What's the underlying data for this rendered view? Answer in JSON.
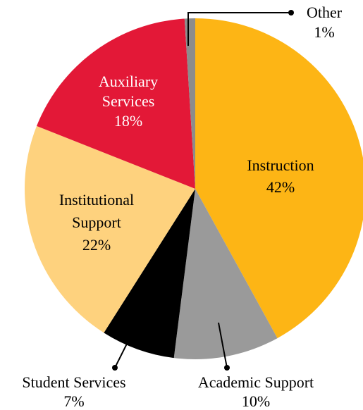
{
  "chart_data": {
    "type": "pie",
    "categories": [
      "Instruction",
      "Academic Support",
      "Student Services",
      "Institutional Support",
      "Auxiliary Services",
      "Other"
    ],
    "values": [
      42,
      10,
      7,
      22,
      18,
      1
    ],
    "value_labels": [
      "42%",
      "10%",
      "7%",
      "22%",
      "18%",
      "1%"
    ],
    "colors": [
      "#fdb515",
      "#9a9a9a",
      "#000000",
      "#fed27e",
      "#e31837",
      "#8c8c8c"
    ]
  }
}
